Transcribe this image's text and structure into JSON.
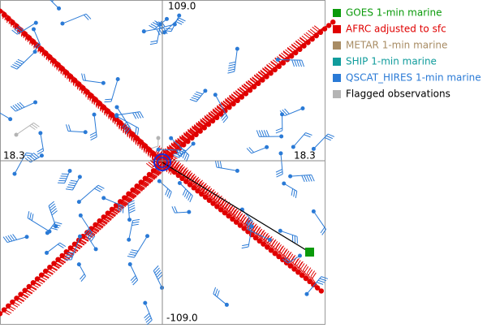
{
  "axes": {
    "top": "109.0",
    "bottom": "-109.0",
    "left": "18.3",
    "right": "18.3"
  },
  "legend": [
    {
      "label": "GOES 1-min marine",
      "color": "#0a9a0a"
    },
    {
      "label": "AFRC adjusted to sfc",
      "color": "#e00000"
    },
    {
      "label": "METAR 1-min marine",
      "color": "#a88c64"
    },
    {
      "label": "SHIP 1-min marine",
      "color": "#109c9c"
    },
    {
      "label": "QSCAT_HIRES 1-min marine",
      "color": "#2a7ad6"
    },
    {
      "label": "Flagged observations",
      "color": "#b4b4b4"
    }
  ]
}
